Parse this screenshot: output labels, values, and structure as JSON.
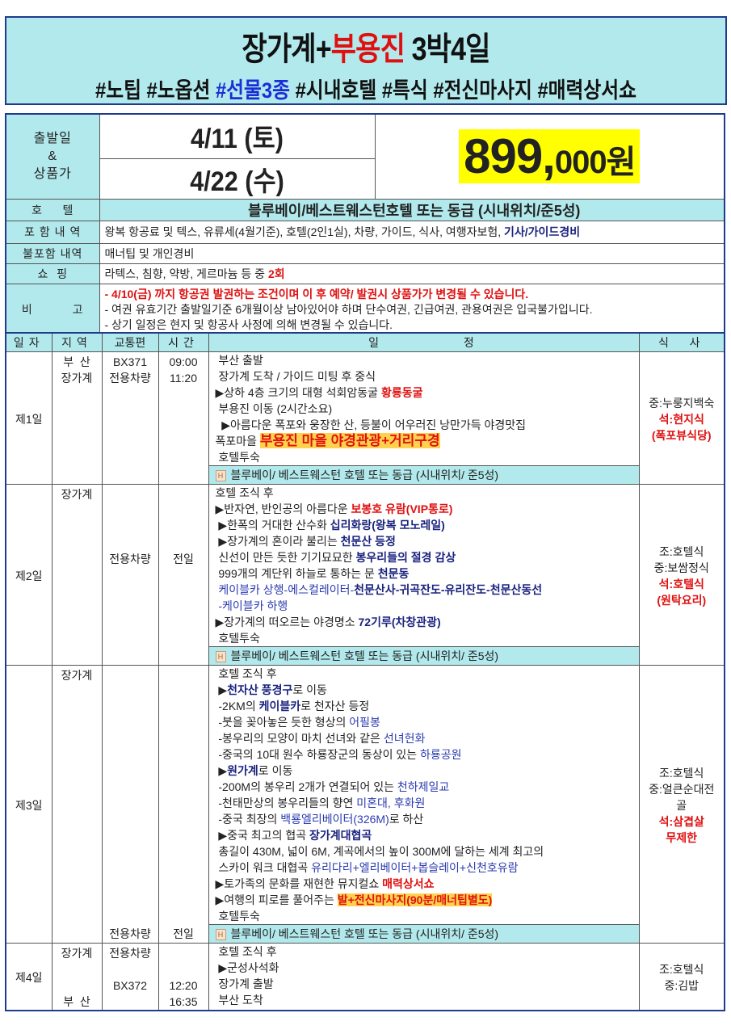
{
  "header": {
    "title_a": "장가계+",
    "title_b": "부용진",
    "title_c": " 3박4일",
    "tags_a": "#노팁 #노옵션 ",
    "tags_b": "#선물3종",
    "tags_c": " #시내호텔 #특식 #전신마사지 #매력상서쇼"
  },
  "info": {
    "depart_label_1": "출발일",
    "depart_label_2": "&",
    "depart_label_3": "상품가",
    "date_1": "4/11 (토)",
    "date_2": "4/22 (수)",
    "price_main": "899,",
    "price_rest": "000원",
    "hotel_label": "호     텔",
    "hotel": "블루베이/베스트웨스턴호텔 또는 동급 (시내위치/준5성)",
    "include_label": "포 함 내 역",
    "include_text": "왕복 항공료 및 텍스, 유류세(4월기준), 호텔(2인1실), 차량, 가이드, 식사, 여행자보험, ",
    "include_hl": "기사/가이드경비",
    "exclude_label": "불포함 내역",
    "exclude_text": "매너팁 및 개인경비",
    "shop_label": "쇼  핑",
    "shop_text": "라텍스, 침향, 약방, 게르마늄 등 중 ",
    "shop_hl": "2회",
    "notes_label": "비          고",
    "notes": [
      "- 4/10(금) 까지 항공권 발권하는 조건이며 이 후 예약/ 발권시 상품가가 변경될 수 있습니다.",
      "- 여권 유효기간 출발일기준 6개월이상 남아있어야 하며 단수여권, 긴급여권, 관용여권은 입국불가입니다.",
      "- 상기 일정은 현지 및 항공사 사정에 의해 변경될 수 있습니다."
    ]
  },
  "itinerary": {
    "headers": [
      "일자",
      "지역",
      "교통편",
      "시간",
      "일          정",
      "식  사"
    ],
    "hotel_bar": "블루베이/ 베스트웨스턴 호텔 또는 동급 (시내위치/ 준5성)",
    "days": [
      {
        "day": "제1일",
        "region": [
          "부  산",
          "장가계"
        ],
        "transport": [
          "BX371",
          "전용차량"
        ],
        "time": [
          "09:00",
          "11:20"
        ],
        "lines": [
          [
            [
              "n",
              " 부산 출발"
            ]
          ],
          [
            [
              "n",
              " 장가계 도착 / 가이드 미팅 후 중식"
            ]
          ],
          [
            [
              "n",
              "▶상하 4층 크기의 대형 석회암동굴 "
            ],
            [
              "r",
              "황룡동굴"
            ]
          ],
          [
            [
              "n",
              " 부용진 이동 (2시간소요)"
            ]
          ],
          [
            [
              "n",
              "  ▶아름다운 폭포와 웅장한 산, 등불이 어우러진 낭만가득 야경맛집"
            ]
          ],
          [
            [
              "n",
              "폭포마을 "
            ],
            [
              "hl",
              "부용진 마을 야경관광+거리구경"
            ]
          ],
          [
            [
              "n",
              " 호텔투숙"
            ]
          ]
        ],
        "meals": [
          [
            "n",
            "중:누룽지백숙"
          ],
          [
            "r",
            "석:현지식"
          ],
          [
            "r",
            "(폭포뷰식당)"
          ]
        ],
        "hotel": true
      },
      {
        "day": "제2일",
        "region": [
          "장가계"
        ],
        "transport": [
          "",
          "",
          "",
          "",
          "전용차량"
        ],
        "time": [
          "",
          "",
          "",
          "",
          "전일"
        ],
        "lines": [
          [
            [
              "n",
              "호텔 조식 후"
            ]
          ],
          [
            [
              "n",
              "▶반자연, 반인공의 아름다운 "
            ],
            [
              "r",
              "보봉호 유람(VIP통로)"
            ]
          ],
          [
            [
              "n",
              " ▶한폭의 거대한 산수화 "
            ],
            [
              "b",
              "십리화랑(왕복 모노레일)"
            ]
          ],
          [
            [
              "n",
              " ▶장가계의 혼이라 불리는 "
            ],
            [
              "b",
              "천문산 등정"
            ]
          ],
          [
            [
              "n",
              " 신선이 만든 듯한 기기묘묘한 "
            ],
            [
              "b",
              "봉우리들의 절경 감상"
            ]
          ],
          [
            [
              "n",
              " 999개의 계단위 하늘로 통하는 문 "
            ],
            [
              "b",
              "천문동"
            ]
          ],
          [
            [
              "bl",
              " 케이블카 상행-에스컬레이터-"
            ],
            [
              "b",
              "천문산사-귀곡잔도-유리잔도-천문산동선"
            ]
          ],
          [
            [
              "bl",
              " -케이블카 하행"
            ]
          ],
          [
            [
              "n",
              "▶장가계의 떠오르는 야경명소 "
            ],
            [
              "b",
              "72기루(차창관광)"
            ]
          ],
          [
            [
              "n",
              " 호텔투숙"
            ]
          ]
        ],
        "meals": [
          [
            "n",
            "조:호텔식"
          ],
          [
            "n",
            "중:보쌈정식"
          ],
          [
            "r",
            "석:호텔식"
          ],
          [
            "r",
            "(원탁요리)"
          ]
        ],
        "hotel": true
      },
      {
        "day": "제3일",
        "region": [
          "장가계"
        ],
        "transport": [
          "",
          "",
          "",
          "",
          "",
          "",
          "",
          "",
          "",
          "",
          "",
          "",
          "",
          "",
          "",
          "",
          "전용차량"
        ],
        "time": [
          "",
          "",
          "",
          "",
          "",
          "",
          "",
          "",
          "",
          "",
          "",
          "",
          "",
          "",
          "",
          "",
          "전일"
        ],
        "lines": [
          [
            [
              "n",
              " 호텔 조식 후"
            ]
          ],
          [
            [
              "n",
              " ▶"
            ],
            [
              "b",
              "천자산 풍경구"
            ],
            [
              "n",
              "로 이동"
            ]
          ],
          [
            [
              "n",
              " -2KM의 "
            ],
            [
              "b",
              "케이블카"
            ],
            [
              "n",
              "로 천자산 등정"
            ]
          ],
          [
            [
              "n",
              " -붓을 꽂아놓은 듯한 형상의 "
            ],
            [
              "bl",
              "어필봉"
            ]
          ],
          [
            [
              "n",
              " -봉우리의 모양이 마치 선녀와 같은 "
            ],
            [
              "bl",
              "선녀헌화"
            ]
          ],
          [
            [
              "n",
              " -중국의 10대 원수 하룡장군의 동상이 있는 "
            ],
            [
              "bl",
              "하룡공원"
            ]
          ],
          [
            [
              "n",
              " ▶"
            ],
            [
              "b",
              "원가계"
            ],
            [
              "n",
              "로 이동"
            ]
          ],
          [
            [
              "n",
              " -200M의 봉우리 2개가 연결되어 있는 "
            ],
            [
              "bl",
              "천하제일교"
            ]
          ],
          [
            [
              "n",
              " -천태만상의 봉우리들의 향연 "
            ],
            [
              "bl",
              "미혼대, 후화원"
            ]
          ],
          [
            [
              "n",
              " -중국 최장의 "
            ],
            [
              "bl",
              "백룡엘리베이터(326M)"
            ],
            [
              "n",
              "로 하산"
            ]
          ],
          [
            [
              "n",
              " ▶중국 최고의 협곡 "
            ],
            [
              "b",
              "장가계대협곡"
            ]
          ],
          [
            [
              "n",
              " 총길이 430M, 넓이 6M, 계곡에서의 높이 300M에 달하는 세계 최고의"
            ]
          ],
          [
            [
              "n",
              " 스카이 워크 대협곡 "
            ],
            [
              "bl",
              "유리다리+엘리베이터+봅슬레이+신천호유람"
            ]
          ],
          [
            [
              "n",
              "▶토가족의 문화를 재현한 뮤지컬쇼 "
            ],
            [
              "r",
              "매력상서쇼"
            ]
          ],
          [
            [
              "n",
              "▶여행의 피로를 풀어주는 "
            ],
            [
              "hr",
              "발+전신마사지(90분/매너팁별도)"
            ]
          ],
          [
            [
              "n",
              " 호텔투숙"
            ]
          ]
        ],
        "meals": [
          [
            "n",
            "조:호텔식"
          ],
          [
            "n",
            "중:얼큰순대전"
          ],
          [
            "n",
            "골"
          ],
          [
            "r",
            "석:삼겹살"
          ],
          [
            "r",
            "무제한"
          ]
        ],
        "hotel": true
      },
      {
        "day": "제4일",
        "region": [
          "장가계",
          "",
          "",
          "부  산"
        ],
        "transport": [
          "전용차량",
          "",
          "BX372"
        ],
        "time": [
          "",
          "",
          "12:20",
          "16:35"
        ],
        "lines": [
          [
            [
              "n",
              " 호텔 조식 후"
            ]
          ],
          [
            [
              "n",
              " ▶군성사석화"
            ]
          ],
          [
            [
              "n",
              " 장가계 출발"
            ]
          ],
          [
            [
              "n",
              " 부산 도착"
            ]
          ]
        ],
        "meals": [
          [
            "n",
            "조:호텔식"
          ],
          [
            "n",
            "중:김밥"
          ]
        ],
        "hotel": false
      }
    ]
  }
}
